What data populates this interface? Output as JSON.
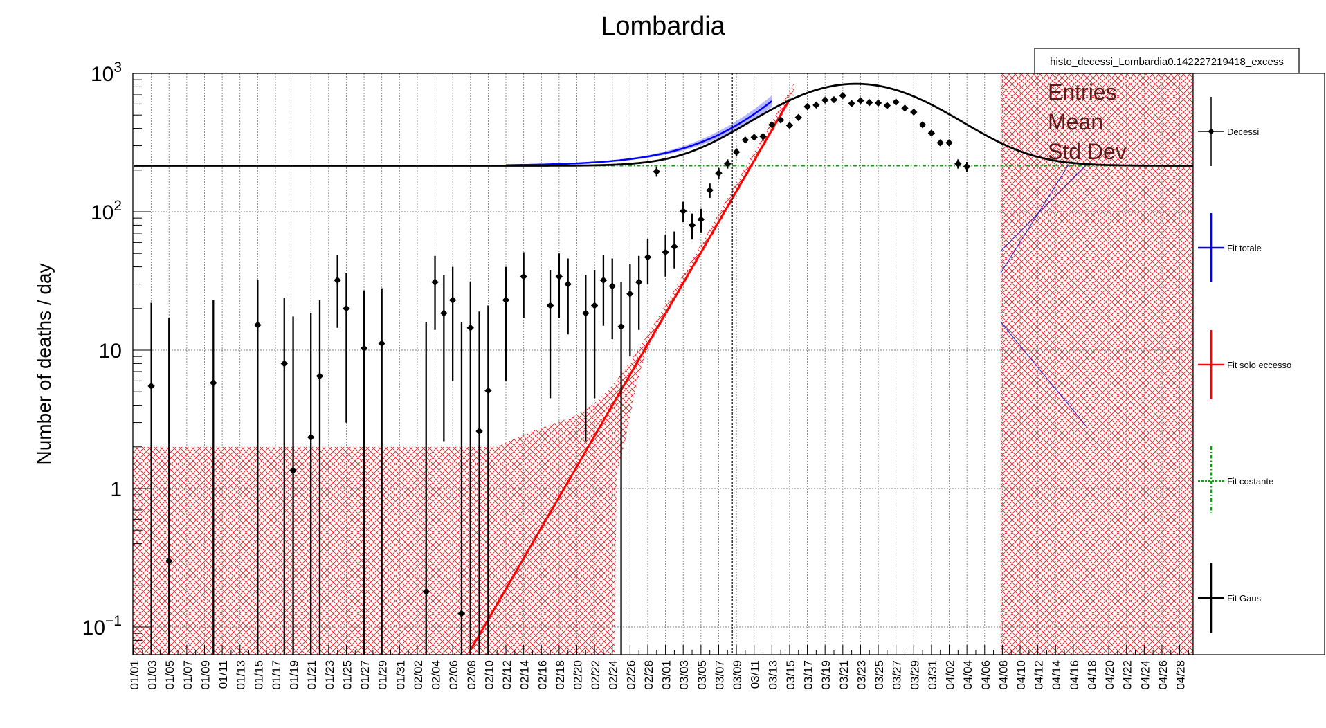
{
  "chart_data": {
    "type": "scatter",
    "title": "Lombardia",
    "ylabel": "Number of deaths / day",
    "xlabel": "",
    "y_scale": "log",
    "ylim": [
      0.062,
      1000
    ],
    "x_range_days": [
      0,
      120
    ],
    "y_tick_labels": [
      {
        "value": 0.1,
        "base": "10",
        "exp": "−1"
      },
      {
        "value": 1,
        "base": "1",
        "exp": ""
      },
      {
        "value": 10,
        "base": "10",
        "exp": ""
      },
      {
        "value": 100,
        "base": "10",
        "exp": "2"
      },
      {
        "value": 1000,
        "base": "10",
        "exp": "3"
      }
    ],
    "x_tick_labels": [
      "01/01",
      "01/03",
      "01/05",
      "01/07",
      "01/09",
      "01/11",
      "01/13",
      "01/15",
      "01/17",
      "01/19",
      "01/21",
      "01/23",
      "01/25",
      "01/27",
      "01/29",
      "01/31",
      "02/02",
      "02/04",
      "02/06",
      "02/08",
      "02/10",
      "02/12",
      "02/14",
      "02/16",
      "02/18",
      "02/20",
      "02/22",
      "02/24",
      "02/26",
      "02/28",
      "03/01",
      "03/03",
      "03/05",
      "03/07",
      "03/09",
      "03/11",
      "03/13",
      "03/15",
      "03/17",
      "03/19",
      "03/21",
      "03/23",
      "03/25",
      "03/27",
      "03/29",
      "03/31",
      "04/02",
      "04/04",
      "04/06",
      "04/08",
      "04/10",
      "04/12",
      "04/14",
      "04/16",
      "04/18",
      "04/20",
      "04/22",
      "04/24",
      "04/26",
      "04/28"
    ],
    "x_tick_days": [
      0,
      2,
      4,
      6,
      8,
      10,
      12,
      14,
      16,
      18,
      20,
      22,
      24,
      26,
      28,
      30,
      32,
      34,
      36,
      38,
      40,
      42,
      44,
      46,
      48,
      50,
      52,
      54,
      56,
      58,
      60,
      62,
      64,
      66,
      68,
      70,
      72,
      74,
      76,
      78,
      80,
      82,
      84,
      86,
      88,
      90,
      92,
      94,
      96,
      98,
      100,
      102,
      104,
      106,
      108,
      110,
      112,
      114,
      116,
      118
    ],
    "grid": true,
    "legend_placement": "right",
    "vertical_marker_day": 67.5,
    "series": [
      {
        "name": "Decessi",
        "color": "#000000",
        "points": [
          {
            "x": 2,
            "y": 5.5,
            "lo": 0.06,
            "hi": 22
          },
          {
            "x": 4,
            "y": 0.3,
            "lo": 0.06,
            "hi": 17
          },
          {
            "x": 9,
            "y": 5.8,
            "lo": 0.06,
            "hi": 23
          },
          {
            "x": 14,
            "y": 15.2,
            "lo": 0.06,
            "hi": 32
          },
          {
            "x": 17,
            "y": 8.0,
            "lo": 0.06,
            "hi": 24
          },
          {
            "x": 18,
            "y": 1.35,
            "lo": 0.06,
            "hi": 17.5
          },
          {
            "x": 20,
            "y": 2.35,
            "lo": 0.06,
            "hi": 18.5
          },
          {
            "x": 21,
            "y": 6.5,
            "lo": 0.06,
            "hi": 23
          },
          {
            "x": 23,
            "y": 32,
            "lo": 14.5,
            "hi": 49
          },
          {
            "x": 24,
            "y": 20,
            "lo": 3.0,
            "hi": 36
          },
          {
            "x": 26,
            "y": 10.3,
            "lo": 0.06,
            "hi": 27
          },
          {
            "x": 28,
            "y": 11.2,
            "lo": 0.06,
            "hi": 28
          },
          {
            "x": 33,
            "y": 0.18,
            "lo": 0.06,
            "hi": 16
          },
          {
            "x": 34,
            "y": 31,
            "lo": 14,
            "hi": 48
          },
          {
            "x": 35,
            "y": 18.5,
            "lo": 2.2,
            "hi": 35
          },
          {
            "x": 36,
            "y": 23,
            "lo": 6.0,
            "hi": 40
          },
          {
            "x": 37,
            "y": 0.125,
            "lo": 0.06,
            "hi": 16
          },
          {
            "x": 38,
            "y": 14.5,
            "lo": 0.06,
            "hi": 31
          },
          {
            "x": 39,
            "y": 2.6,
            "lo": 0.06,
            "hi": 19
          },
          {
            "x": 40,
            "y": 5.1,
            "lo": 0.06,
            "hi": 21
          },
          {
            "x": 42,
            "y": 23,
            "lo": 6.0,
            "hi": 40
          },
          {
            "x": 44,
            "y": 34,
            "lo": 17,
            "hi": 51
          },
          {
            "x": 47,
            "y": 21,
            "lo": 4.5,
            "hi": 38
          },
          {
            "x": 48,
            "y": 34,
            "lo": 17,
            "hi": 50
          },
          {
            "x": 49,
            "y": 30,
            "lo": 13,
            "hi": 46
          },
          {
            "x": 51,
            "y": 18.5,
            "lo": 2.2,
            "hi": 35
          },
          {
            "x": 52,
            "y": 21,
            "lo": 4.5,
            "hi": 38
          },
          {
            "x": 53,
            "y": 32,
            "lo": 15,
            "hi": 49
          },
          {
            "x": 54,
            "y": 29,
            "lo": 12,
            "hi": 46
          },
          {
            "x": 55,
            "y": 14.8,
            "lo": 0.06,
            "hi": 31
          },
          {
            "x": 56,
            "y": 25.5,
            "lo": 9,
            "hi": 42
          },
          {
            "x": 57,
            "y": 31,
            "lo": 14,
            "hi": 48
          },
          {
            "x": 58,
            "y": 47,
            "lo": 30,
            "hi": 64
          },
          {
            "x": 59,
            "y": 195,
            "lo": 179,
            "hi": 212
          },
          {
            "x": 60,
            "y": 51,
            "lo": 34,
            "hi": 68
          },
          {
            "x": 61,
            "y": 56,
            "lo": 39,
            "hi": 72
          },
          {
            "x": 62,
            "y": 101,
            "lo": 84,
            "hi": 118
          },
          {
            "x": 63,
            "y": 80,
            "lo": 63,
            "hi": 97
          },
          {
            "x": 64,
            "y": 88,
            "lo": 71,
            "hi": 105
          },
          {
            "x": 65,
            "y": 143,
            "lo": 126,
            "hi": 160
          },
          {
            "x": 66,
            "y": 190,
            "lo": 173,
            "hi": 207
          },
          {
            "x": 67,
            "y": 222,
            "lo": 205,
            "hi": 239
          },
          {
            "x": 68,
            "y": 270,
            "lo": 253,
            "hi": 287
          },
          {
            "x": 69,
            "y": 330,
            "lo": 313,
            "hi": 347
          },
          {
            "x": 70,
            "y": 345,
            "lo": 328,
            "hi": 362
          },
          {
            "x": 71,
            "y": 350,
            "lo": 333,
            "hi": 367
          },
          {
            "x": 72,
            "y": 425,
            "lo": 408,
            "hi": 442
          },
          {
            "x": 73,
            "y": 460,
            "lo": 443,
            "hi": 477
          },
          {
            "x": 74,
            "y": 420,
            "lo": 403,
            "hi": 437
          },
          {
            "x": 75,
            "y": 480,
            "lo": 463,
            "hi": 497
          },
          {
            "x": 76,
            "y": 575,
            "lo": 558,
            "hi": 592
          },
          {
            "x": 77,
            "y": 590,
            "lo": 573,
            "hi": 607
          },
          {
            "x": 78,
            "y": 640,
            "lo": 623,
            "hi": 657
          },
          {
            "x": 79,
            "y": 645,
            "lo": 628,
            "hi": 662
          },
          {
            "x": 80,
            "y": 690,
            "lo": 673,
            "hi": 707
          },
          {
            "x": 81,
            "y": 605,
            "lo": 588,
            "hi": 622
          },
          {
            "x": 82,
            "y": 635,
            "lo": 618,
            "hi": 652
          },
          {
            "x": 83,
            "y": 615,
            "lo": 598,
            "hi": 632
          },
          {
            "x": 84,
            "y": 610,
            "lo": 593,
            "hi": 627
          },
          {
            "x": 85,
            "y": 585,
            "lo": 568,
            "hi": 602
          },
          {
            "x": 86,
            "y": 620,
            "lo": 603,
            "hi": 637
          },
          {
            "x": 87,
            "y": 560,
            "lo": 543,
            "hi": 577
          },
          {
            "x": 88,
            "y": 525,
            "lo": 508,
            "hi": 542
          },
          {
            "x": 89,
            "y": 425,
            "lo": 408,
            "hi": 442
          },
          {
            "x": 90,
            "y": 370,
            "lo": 353,
            "hi": 387
          },
          {
            "x": 91,
            "y": 315,
            "lo": 298,
            "hi": 332
          },
          {
            "x": 92,
            "y": 315,
            "lo": 298,
            "hi": 332
          },
          {
            "x": 93,
            "y": 222,
            "lo": 205,
            "hi": 239
          },
          {
            "x": 94,
            "y": 212,
            "lo": 195,
            "hi": 229
          }
        ]
      },
      {
        "name": "Fit totale",
        "color": "#0000ff",
        "model": "const+exp",
        "constant": 215,
        "exp_a0": 0.0014,
        "exp_x0": 0,
        "exp_rate": 0.175,
        "x_from": 42,
        "x_to": 72
      },
      {
        "name": "Fit solo eccesso",
        "color": "#ff0000",
        "model": "exp",
        "amp": 2.4,
        "x0": 52,
        "rate": 0.2545,
        "x_from": 37.8,
        "x_to": 74
      },
      {
        "name": "Fit costante",
        "color": "#00aa00",
        "model": "const",
        "constant": 215,
        "x_from": 48,
        "x_to": 120
      },
      {
        "name": "Fit Gaus",
        "color": "#000000",
        "model": "const+gaus",
        "constant": 215,
        "amp": 625,
        "mean": 81.5,
        "sigma": 8.5,
        "x_from": 0,
        "x_to": 120
      }
    ]
  },
  "stats_box": {
    "header": "histo_decessi_Lombardia0.142227219418_excess",
    "rows": [
      "Entries",
      "Mean",
      "Std Dev"
    ]
  },
  "colors": {
    "error_band": "#e8232a",
    "grid": "#808080",
    "marker_line": "#000000"
  }
}
